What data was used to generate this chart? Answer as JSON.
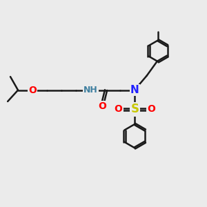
{
  "background_color": "#ebebeb",
  "bond_color": "#1a1a1a",
  "bond_width": 1.8,
  "N_color": "#2020ff",
  "O_color": "#ff0000",
  "S_color": "#c8c800",
  "NH_color": "#4080a0",
  "font_size": 9,
  "fig_width": 3.0,
  "fig_height": 3.0,
  "dpi": 100,
  "xlim": [
    0,
    10
  ],
  "ylim": [
    0,
    10
  ]
}
